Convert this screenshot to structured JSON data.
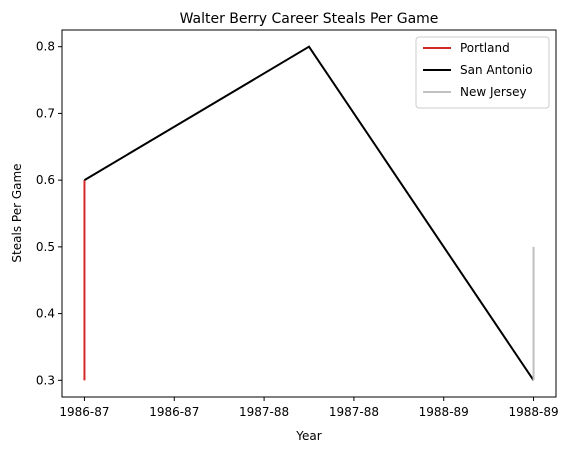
{
  "chart_data": {
    "type": "line",
    "title": "Walter Berry  Career Steals Per Game",
    "xlabel": "Year",
    "ylabel": "Steals Per Game",
    "x_tick_labels": [
      "1986-87",
      "1986-87",
      "1987-88",
      "1987-88",
      "1988-89",
      "1988-89"
    ],
    "x_tick_positions": [
      0,
      0.5,
      1,
      1.5,
      2,
      2.5
    ],
    "xlim": [
      -0.125,
      2.625
    ],
    "ylim": [
      0.275,
      0.825
    ],
    "y_ticks": [
      0.3,
      0.4,
      0.5,
      0.6,
      0.7,
      0.8
    ],
    "y_tick_labels": [
      "0.3",
      "0.4",
      "0.5",
      "0.6",
      "0.7",
      "0.8"
    ],
    "grid": false,
    "legend_position": "top-right",
    "series": [
      {
        "name": "Portland",
        "color": "#d62728",
        "x": [
          0,
          0
        ],
        "y": [
          0.3,
          0.6
        ]
      },
      {
        "name": "San Antonio",
        "color": "#000000",
        "x": [
          0,
          1.25,
          2.5
        ],
        "y": [
          0.6,
          0.8,
          0.3
        ]
      },
      {
        "name": "New Jersey",
        "color": "#c0c0c0",
        "x": [
          2.5,
          2.5
        ],
        "y": [
          0.3,
          0.5
        ]
      }
    ]
  }
}
